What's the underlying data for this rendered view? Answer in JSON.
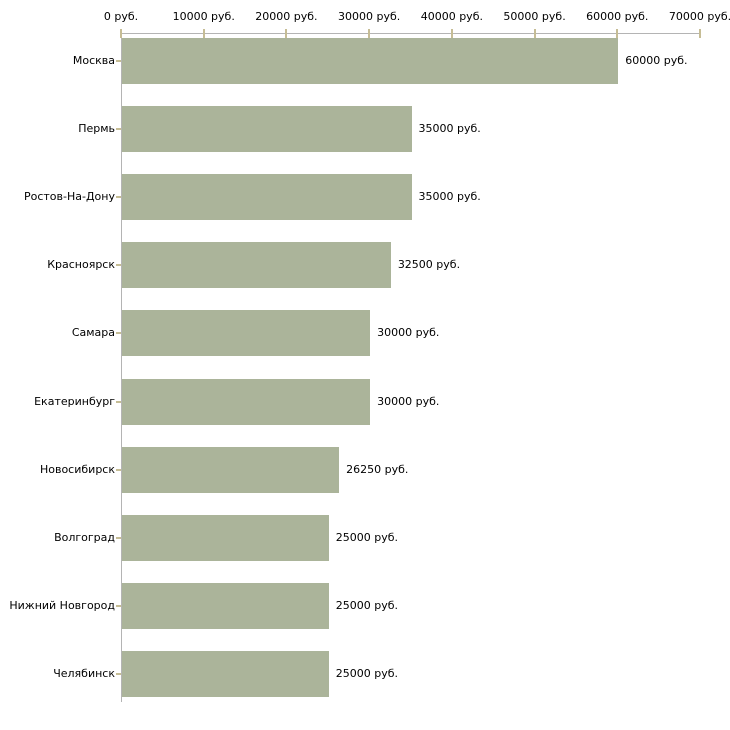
{
  "chart_data": {
    "type": "bar",
    "orientation": "horizontal",
    "title": "",
    "unit": "руб.",
    "categories": [
      "Москва",
      "Пермь",
      "Ростов-На-Дону",
      "Красноярск",
      "Самара",
      "Екатеринбург",
      "Новосибирск",
      "Волгоград",
      "Нижний Новгород",
      "Челябинск"
    ],
    "values": [
      60000,
      35000,
      35000,
      32500,
      30000,
      30000,
      26250,
      25000,
      25000,
      25000
    ],
    "value_labels": [
      "60000 руб.",
      "35000 руб.",
      "35000 руб.",
      "32500 руб.",
      "30000 руб.",
      "30000 руб.",
      "26250 руб.",
      "25000 руб.",
      "25000 руб.",
      "25000 руб."
    ],
    "x_axis": {
      "position": "top",
      "min": 0,
      "max": 70000,
      "ticks": [
        0,
        10000,
        20000,
        30000,
        40000,
        50000,
        60000,
        70000
      ],
      "tick_labels": [
        "0 руб.",
        "10000 руб.",
        "20000 руб.",
        "30000 руб.",
        "40000 руб.",
        "50000 руб.",
        "60000 руб.",
        "70000 руб."
      ]
    },
    "legend": "none",
    "grid": "off",
    "colors": {
      "bar": "#abb49a",
      "axis_line": "#b4b4b4",
      "tick_mark": "#c6bd95",
      "text": "#000000",
      "background": "#ffffff"
    }
  }
}
